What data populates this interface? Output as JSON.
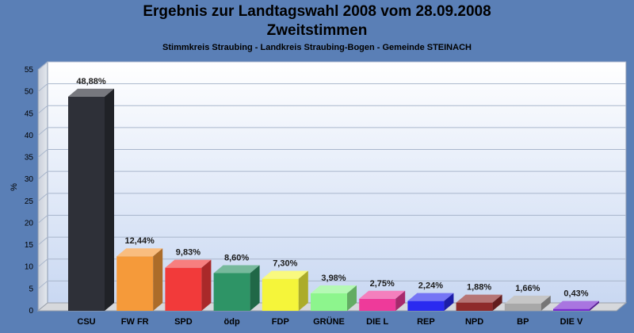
{
  "chart_data": {
    "type": "bar",
    "title": "Ergebnis zur Landtagswahl 2008 vom 28.09.2008",
    "subtitle": "Zweitstimmen",
    "caption": "Stimmkreis Straubing - Landkreis Straubing-Bogen - Gemeinde STEINACH",
    "xlabel": "",
    "ylabel": "%",
    "ylim": [
      0,
      55
    ],
    "yticks": [
      "0",
      "5",
      "10",
      "15",
      "20",
      "25",
      "30",
      "35",
      "40",
      "45",
      "50",
      "55"
    ],
    "grid": true,
    "categories": [
      "CSU",
      "FW FR",
      "SPD",
      "ödp",
      "FDP",
      "GRÜNE",
      "DIE L",
      "REP",
      "NPD",
      "BP",
      "DIE V"
    ],
    "values": [
      48.88,
      12.44,
      9.83,
      8.6,
      7.3,
      3.98,
      2.75,
      2.24,
      1.88,
      1.66,
      0.43
    ],
    "value_labels": [
      "48,88%",
      "12,44%",
      "9,83%",
      "8,60%",
      "7,30%",
      "3,98%",
      "2,75%",
      "2,24%",
      "1,88%",
      "1,66%",
      "0,43%"
    ],
    "colors": [
      "#2e3038",
      "#f59a3a",
      "#f23a3a",
      "#2e9466",
      "#f5f53a",
      "#8df58d",
      "#ee3a9a",
      "#2a2af0",
      "#8e2a2a",
      "#a8a8a8",
      "#7a2ad0"
    ]
  }
}
